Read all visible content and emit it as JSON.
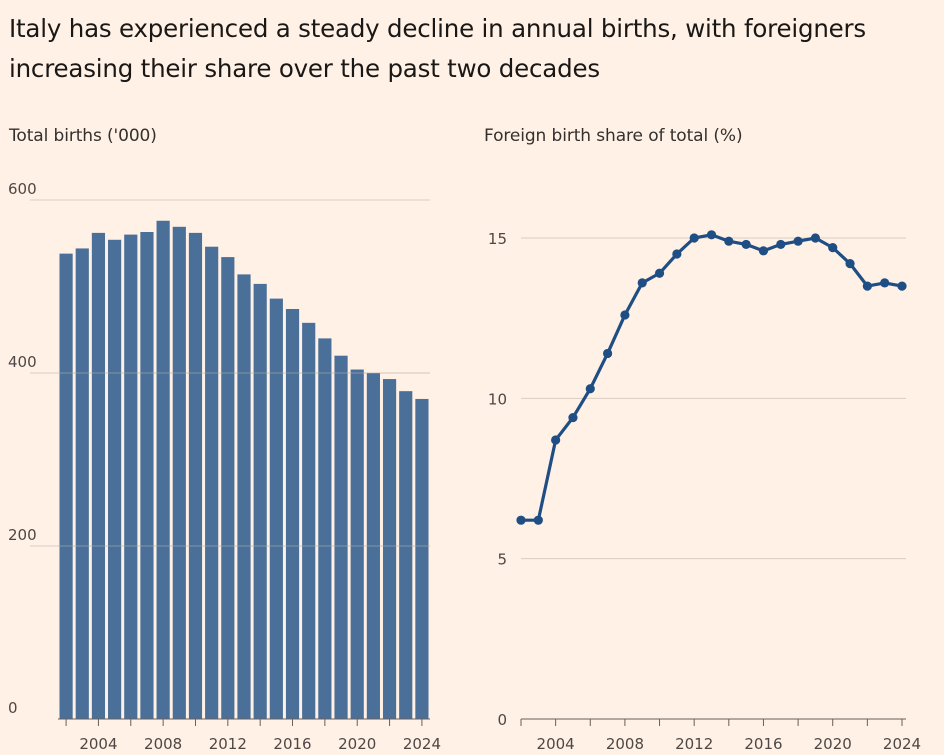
{
  "headline": "Italy has experienced a steady decline in annual births, with foreigners increasing their share over the past two decades",
  "colors": {
    "background": "#fff1e5",
    "bar": "#4a6f98",
    "line": "#1f4e85",
    "grid": "#d9cdc2",
    "axis": "#66605c"
  },
  "chart_data": [
    {
      "type": "bar",
      "title": "Total births ('000)",
      "x": [
        2002,
        2003,
        2004,
        2005,
        2006,
        2007,
        2008,
        2009,
        2010,
        2011,
        2012,
        2013,
        2014,
        2015,
        2016,
        2017,
        2018,
        2019,
        2020,
        2021,
        2022,
        2023,
        2024
      ],
      "values": [
        538,
        544,
        562,
        554,
        560,
        563,
        576,
        569,
        562,
        546,
        534,
        514,
        503,
        486,
        474,
        458,
        440,
        420,
        404,
        400,
        393,
        379,
        370
      ],
      "ylim": [
        0,
        600
      ],
      "yticks": [
        "0",
        "200",
        "400",
        "600"
      ],
      "xticks": [
        "2004",
        "2008",
        "2012",
        "2016",
        "2020",
        "2024"
      ],
      "grid": true
    },
    {
      "type": "line",
      "title": "Foreign birth share of total (%)",
      "x": [
        2002,
        2003,
        2004,
        2005,
        2006,
        2007,
        2008,
        2009,
        2010,
        2011,
        2012,
        2013,
        2014,
        2015,
        2016,
        2017,
        2018,
        2019,
        2020,
        2021,
        2022,
        2023,
        2024
      ],
      "values": [
        6.2,
        6.2,
        8.7,
        9.4,
        10.3,
        11.4,
        12.6,
        13.6,
        13.9,
        14.5,
        15.0,
        15.1,
        14.9,
        14.8,
        14.6,
        14.8,
        14.9,
        15.0,
        14.7,
        14.2,
        13.5,
        13.6,
        13.5
      ],
      "ylim": [
        0,
        15
      ],
      "yticks": [
        "0",
        "5",
        "10",
        "15"
      ],
      "xticks": [
        "2004",
        "2008",
        "2012",
        "2016",
        "2020",
        "2024"
      ],
      "grid": true
    }
  ]
}
